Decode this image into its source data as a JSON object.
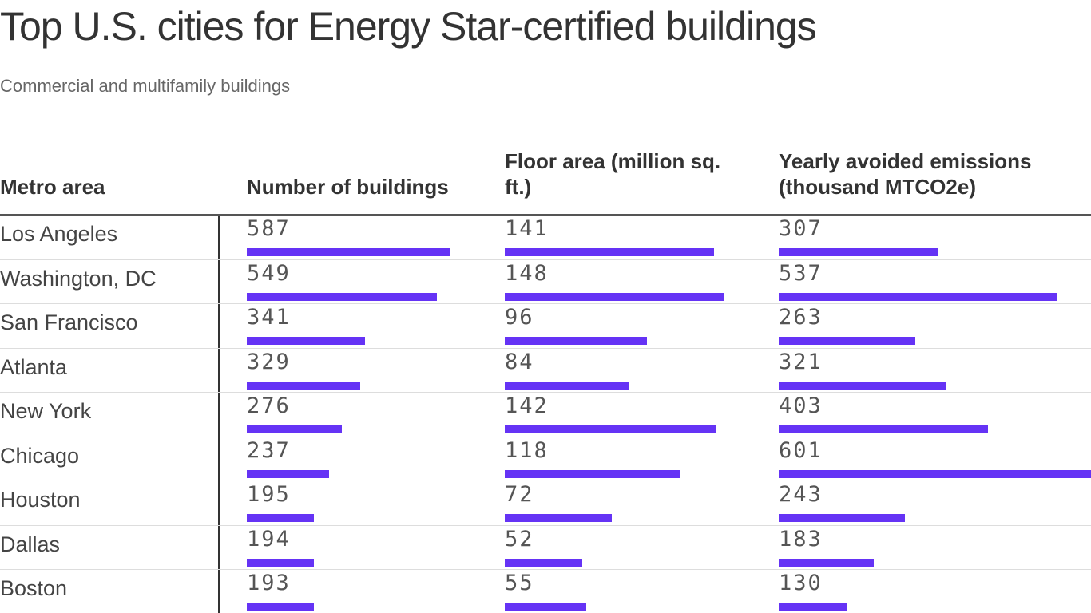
{
  "title": "Top U.S. cities for Energy Star-certified buildings",
  "subtitle": "Commercial and multifamily buildings",
  "table": {
    "headers": [
      "Metro area",
      "Number of buildings",
      "Floor area (million sq. ft.)",
      "Yearly avoided emissions (thousand MTCO2e)"
    ],
    "rows": [
      [
        "Los Angeles",
        587,
        141,
        307
      ],
      [
        "Washington, DC",
        549,
        148,
        537
      ],
      [
        "San Francisco",
        341,
        96,
        263
      ],
      [
        "Atlanta",
        329,
        84,
        321
      ],
      [
        "New York",
        276,
        142,
        403
      ],
      [
        "Chicago",
        237,
        118,
        601
      ],
      [
        "Houston",
        195,
        72,
        243
      ],
      [
        "Dallas",
        194,
        52,
        183
      ],
      [
        "Boston",
        193,
        55,
        130
      ]
    ]
  }
}
